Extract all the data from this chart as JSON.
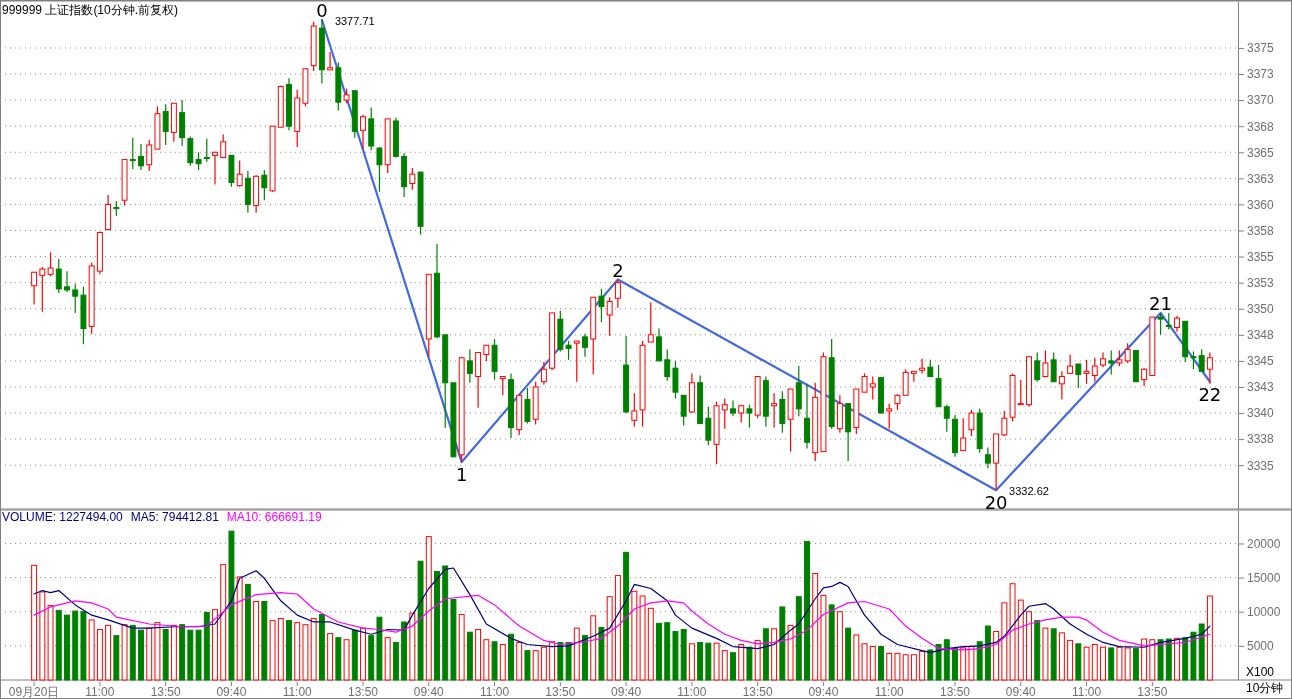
{
  "chart_data": [
    {
      "type": "candlestick",
      "title": "999999 上证指数(10分钟.前复权)",
      "categories": [
        null,
        null,
        null,
        null,
        null,
        null,
        null,
        null,
        null,
        null,
        null,
        null,
        null,
        null,
        null,
        null,
        null,
        null,
        null,
        null,
        null,
        null,
        null,
        null,
        null,
        null,
        null,
        null,
        null,
        null,
        null,
        null,
        null,
        null,
        null,
        null,
        null,
        null,
        null,
        null,
        null,
        null,
        null,
        null,
        null,
        null,
        null,
        null,
        null,
        null,
        null,
        null,
        null,
        null,
        null,
        null,
        null,
        null,
        null,
        null,
        null,
        null,
        null,
        null,
        null,
        null,
        null,
        null,
        null,
        null,
        null,
        null,
        null,
        null,
        null,
        null,
        null,
        null,
        null,
        null,
        null,
        null,
        null,
        null,
        null,
        null,
        null,
        null,
        null,
        null,
        null,
        null,
        null,
        null,
        null,
        null,
        null,
        null,
        null,
        null,
        null,
        null,
        null,
        null,
        null,
        null,
        null,
        null,
        null,
        null,
        null,
        null,
        null,
        null,
        null,
        null,
        null,
        null,
        null,
        null,
        null,
        null,
        null,
        null,
        null,
        null,
        null,
        null,
        null,
        null,
        null,
        null,
        null,
        null,
        null,
        null,
        null,
        null,
        null,
        null,
        null,
        null,
        null,
        null
      ],
      "ohlc": [
        [
          3352.2,
          3353.5,
          3350.4,
          3353.5
        ],
        [
          3353.2,
          3354.0,
          3349.7,
          3353.8
        ],
        [
          3353.3,
          3355.4,
          3353.1,
          3353.9
        ],
        [
          3353.8,
          3354.8,
          3351.5,
          3351.9
        ],
        [
          3352.1,
          3353.6,
          3351.6,
          3351.8
        ],
        [
          3351.8,
          3352.4,
          3349.6,
          3351.2
        ],
        [
          3351.3,
          3352.1,
          3346.6,
          3348.1
        ],
        [
          3348.3,
          3354.4,
          3347.6,
          3354.1
        ],
        [
          3353.6,
          3357.4,
          3353.3,
          3357.3
        ],
        [
          3357.6,
          3360.9,
          3357.5,
          3360.0
        ],
        [
          3359.7,
          3360.3,
          3358.9,
          3359.6
        ],
        [
          3360.4,
          3364.3,
          3359.9,
          3364.3
        ],
        [
          3364.3,
          3366.4,
          3363.4,
          3364.2
        ],
        [
          3364.6,
          3365.8,
          3363.3,
          3363.7
        ],
        [
          3363.8,
          3366.2,
          3363.2,
          3365.7
        ],
        [
          3365.3,
          3369.4,
          3365.3,
          3368.7
        ],
        [
          3368.9,
          3369.6,
          3365.7,
          3367.0
        ],
        [
          3366.9,
          3369.7,
          3366.0,
          3369.7
        ],
        [
          3368.8,
          3370.0,
          3365.6,
          3366.4
        ],
        [
          3366.3,
          3366.5,
          3363.7,
          3364.0
        ],
        [
          3364.3,
          3365.0,
          3363.3,
          3363.9
        ],
        [
          3364.5,
          3366.3,
          3364.1,
          3364.4
        ],
        [
          3364.7,
          3365.0,
          3361.9,
          3365.0
        ],
        [
          3364.5,
          3366.7,
          3364.5,
          3366.0
        ],
        [
          3364.7,
          3364.7,
          3361.7,
          3362.1
        ],
        [
          3361.8,
          3364.2,
          3361.7,
          3362.9
        ],
        [
          3362.5,
          3363.2,
          3359.2,
          3360.0
        ],
        [
          3359.9,
          3362.8,
          3359.2,
          3362.7
        ],
        [
          3362.8,
          3363.3,
          3360.4,
          3361.6
        ],
        [
          3361.3,
          3367.5,
          3361.2,
          3367.5
        ],
        [
          3367.4,
          3371.4,
          3367.4,
          3371.3
        ],
        [
          3371.5,
          3372.1,
          3367.1,
          3367.5
        ],
        [
          3367.0,
          3371.0,
          3365.5,
          3370.2
        ],
        [
          3369.7,
          3373.0,
          3369.4,
          3373.0
        ],
        [
          3373.3,
          3377.5,
          3372.8,
          3377.1
        ],
        [
          3376.9,
          3377.7,
          3371.6,
          3372.9
        ],
        [
          3372.9,
          3374.6,
          3372.9,
          3373.1
        ],
        [
          3373.1,
          3373.6,
          3369.0,
          3369.8
        ],
        [
          3370.0,
          3371.1,
          3369.7,
          3370.5
        ],
        [
          3370.9,
          3370.9,
          3366.4,
          3367.0
        ],
        [
          3367.1,
          3368.6,
          3365.3,
          3368.4
        ],
        [
          3368.2,
          3369.3,
          3365.2,
          3365.6
        ],
        [
          3365.4,
          3365.5,
          3361.2,
          3363.8
        ],
        [
          3363.8,
          3368.2,
          3363.0,
          3368.2
        ],
        [
          3368.0,
          3368.3,
          3364.5,
          3364.6
        ],
        [
          3364.6,
          3364.9,
          3360.7,
          3361.7
        ],
        [
          3362.0,
          3363.5,
          3361.4,
          3362.9
        ],
        [
          3363.1,
          3363.1,
          3357.1,
          3357.9
        ],
        [
          3347.1,
          3353.3,
          3345.4,
          3353.3
        ],
        [
          3353.4,
          3356.2,
          3347.2,
          3347.3
        ],
        [
          3347.5,
          3347.5,
          3338.6,
          3342.9
        ],
        [
          3342.9,
          3342.9,
          3335.8,
          3335.8
        ],
        [
          3336.0,
          3345.4,
          3335.3,
          3345.3
        ],
        [
          3345.0,
          3346.1,
          3342.9,
          3343.8
        ],
        [
          3343.5,
          3345.8,
          3340.5,
          3345.8
        ],
        [
          3345.6,
          3346.5,
          3345.0,
          3346.5
        ],
        [
          3346.5,
          3347.1,
          3343.2,
          3344.0
        ],
        [
          3343.3,
          3343.5,
          3341.7,
          3343.5
        ],
        [
          3343.2,
          3343.8,
          3337.6,
          3338.6
        ],
        [
          3338.4,
          3341.7,
          3337.9,
          3341.7
        ],
        [
          3341.3,
          3342.4,
          3339.0,
          3339.2
        ],
        [
          3339.4,
          3343.0,
          3338.9,
          3342.5
        ],
        [
          3343.0,
          3344.9,
          3342.7,
          3344.2
        ],
        [
          3344.3,
          3349.6,
          3344.1,
          3349.6
        ],
        [
          3349.0,
          3349.8,
          3345.9,
          3346.1
        ],
        [
          3346.5,
          3346.9,
          3345.1,
          3346.2
        ],
        [
          3346.7,
          3346.9,
          3343.0,
          3346.9
        ],
        [
          3347.3,
          3347.6,
          3345.4,
          3346.3
        ],
        [
          3347.1,
          3351.1,
          3343.7,
          3351.1
        ],
        [
          3351.2,
          3351.9,
          3348.7,
          3350.2
        ],
        [
          3349.4,
          3351.1,
          3347.4,
          3350.7
        ],
        [
          3351.0,
          3352.8,
          3350.1,
          3352.5
        ],
        [
          3344.6,
          3347.4,
          3340.0,
          3340.1
        ],
        [
          3339.3,
          3341.9,
          3338.7,
          3340.2
        ],
        [
          3340.3,
          3346.9,
          3338.7,
          3346.5
        ],
        [
          3346.8,
          3350.6,
          3346.8,
          3347.5
        ],
        [
          3347.3,
          3348.1,
          3345.0,
          3345.0
        ],
        [
          3345.1,
          3346.1,
          3343.1,
          3343.5
        ],
        [
          3344.3,
          3345.0,
          3341.4,
          3342.0
        ],
        [
          3341.7,
          3341.7,
          3338.8,
          3339.7
        ],
        [
          3340.1,
          3343.8,
          3340.0,
          3342.9
        ],
        [
          3342.9,
          3343.6,
          3339.0,
          3339.0
        ],
        [
          3339.5,
          3340.6,
          3336.9,
          3337.4
        ],
        [
          3337.0,
          3341.1,
          3335.1,
          3340.7
        ],
        [
          3340.3,
          3341.4,
          3338.5,
          3340.8
        ],
        [
          3340.4,
          3341.2,
          3339.7,
          3340.0
        ],
        [
          3340.0,
          3340.8,
          3339.1,
          3340.7
        ],
        [
          3340.4,
          3340.8,
          3338.6,
          3340.0
        ],
        [
          3339.8,
          3343.5,
          3339.5,
          3343.5
        ],
        [
          3343.1,
          3343.5,
          3338.7,
          3339.7
        ],
        [
          3340.7,
          3341.9,
          3338.6,
          3340.9
        ],
        [
          3341.3,
          3342.1,
          3338.1,
          3339.0
        ],
        [
          3339.4,
          3342.3,
          3336.3,
          3342.3
        ],
        [
          3342.9,
          3344.5,
          3339.7,
          3340.4
        ],
        [
          3339.5,
          3342.8,
          3336.6,
          3337.2
        ],
        [
          3336.2,
          3342.9,
          3335.4,
          3341.5
        ],
        [
          3336.3,
          3345.8,
          3336.3,
          3345.4
        ],
        [
          3345.3,
          3347.1,
          3338.5,
          3338.7
        ],
        [
          3338.5,
          3341.7,
          3338.1,
          3340.9
        ],
        [
          3340.9,
          3340.9,
          3335.4,
          3338.2
        ],
        [
          3338.6,
          3342.3,
          3338.0,
          3342.3
        ],
        [
          3342.0,
          3343.8,
          3342.0,
          3343.5
        ],
        [
          3342.5,
          3343.5,
          3341.3,
          3342.8
        ],
        [
          3343.4,
          3343.4,
          3340.0,
          3340.0
        ],
        [
          3340.2,
          3340.9,
          3338.5,
          3340.4
        ],
        [
          3340.9,
          3341.8,
          3340.3,
          3341.7
        ],
        [
          3341.7,
          3344.2,
          3341.7,
          3343.9
        ],
        [
          3343.8,
          3344.0,
          3343.0,
          3344.0
        ],
        [
          3344.1,
          3345.2,
          3343.8,
          3344.3
        ],
        [
          3344.4,
          3345.1,
          3343.5,
          3343.5
        ],
        [
          3343.3,
          3344.6,
          3340.6,
          3340.6
        ],
        [
          3340.6,
          3340.8,
          3338.2,
          3339.5
        ],
        [
          3339.4,
          3339.8,
          3335.8,
          3336.2
        ],
        [
          3336.4,
          3339.5,
          3336.4,
          3337.6
        ],
        [
          3338.4,
          3340.3,
          3337.8,
          3340.0
        ],
        [
          3340.0,
          3340.4,
          3336.2,
          3336.6
        ],
        [
          3336.0,
          3336.7,
          3334.7,
          3335.2
        ],
        [
          3335.2,
          3338.0,
          3332.6,
          3338.0
        ],
        [
          3337.9,
          3340.2,
          3337.8,
          3339.5
        ],
        [
          3339.6,
          3343.8,
          3339.2,
          3343.6
        ],
        [
          3340.8,
          3343.2,
          3340.8,
          3340.9
        ],
        [
          3340.8,
          3345.4,
          3340.6,
          3345.4
        ],
        [
          3345.0,
          3345.8,
          3343.0,
          3343.2
        ],
        [
          3343.5,
          3346.0,
          3343.4,
          3344.8
        ],
        [
          3345.1,
          3345.8,
          3343.0,
          3343.0
        ],
        [
          3342.8,
          3344.0,
          3341.3,
          3343.5
        ],
        [
          3343.8,
          3345.6,
          3343.8,
          3344.5
        ],
        [
          3344.7,
          3344.7,
          3342.4,
          3343.7
        ],
        [
          3343.8,
          3345.1,
          3342.8,
          3344.0
        ],
        [
          3343.6,
          3345.3,
          3343.0,
          3344.5
        ],
        [
          3344.6,
          3345.8,
          3344.4,
          3345.2
        ],
        [
          3345.0,
          3346.0,
          3343.7,
          3344.8
        ],
        [
          3344.8,
          3346.0,
          3344.5,
          3345.1
        ],
        [
          3345.0,
          3346.7,
          3344.8,
          3346.1
        ],
        [
          3346.0,
          3346.0,
          3343.0,
          3343.0
        ],
        [
          3343.2,
          3344.3,
          3342.6,
          3344.2
        ],
        [
          3343.6,
          3349.2,
          3343.6,
          3349.2
        ],
        [
          3349.2,
          3349.6,
          3347.5,
          3349.0
        ],
        [
          3348.4,
          3349.6,
          3348.0,
          3348.3
        ],
        [
          3348.2,
          3349.3,
          3347.8,
          3349.1
        ],
        [
          3348.8,
          3348.8,
          3344.9,
          3345.4
        ],
        [
          3345.4,
          3345.9,
          3344.2,
          3345.3
        ],
        [
          3345.5,
          3346.1,
          3344.0,
          3344.0
        ],
        [
          3344.2,
          3345.8,
          3342.8,
          3345.3
        ]
      ],
      "series": [
        {
          "type": "line",
          "color": "#4169e1",
          "values": [
            null,
            null,
            null,
            null,
            null,
            null,
            null,
            null,
            null,
            null,
            null,
            null,
            null,
            null,
            null,
            null,
            null,
            null,
            null,
            null,
            null,
            null,
            null,
            null,
            null,
            null,
            null,
            null,
            null,
            null,
            null,
            null,
            null,
            null,
            null,
            3377.7,
            null,
            null,
            null,
            null,
            null,
            null,
            null,
            null,
            null,
            null,
            null,
            null,
            null,
            null,
            null,
            null,
            3335.3,
            null,
            null,
            null,
            null,
            null,
            null,
            null,
            null,
            null,
            null,
            null,
            null,
            null,
            null,
            null,
            null,
            null,
            null,
            3352.8,
            null,
            null,
            null,
            null,
            null,
            null,
            null,
            null,
            null,
            null,
            null,
            null,
            null,
            null,
            null,
            null,
            null,
            null,
            null,
            null,
            null,
            null,
            null,
            null,
            null,
            null,
            null,
            null,
            null,
            null,
            null,
            null,
            null,
            null,
            null,
            null,
            null,
            null,
            null,
            null,
            null,
            null,
            null,
            null,
            null,
            3332.6,
            null,
            null,
            null,
            null,
            null,
            null,
            null,
            null,
            null,
            null,
            null,
            null,
            null,
            null,
            null,
            null,
            null,
            null,
            null,
            3349.6,
            null,
            null,
            null,
            null,
            null,
            3343.0
          ]
        }
      ],
      "annotations": [
        {
          "text": "0",
          "y": 3377.7
        },
        "3377.71",
        {
          "text": "1",
          "y": 3335.3
        },
        {
          "text": "2",
          "y": 3352.8
        },
        {
          "text": "20",
          "y": 3332.6
        },
        "3332.62",
        {
          "text": "21",
          "y": 3349.6
        },
        {
          "text": "22",
          "y": 3343.0
        }
      ],
      "ylim": [
        3330.8,
        3379.5
      ],
      "yticks": [
        3335,
        {
          "value": 3337.5,
          "label": "3338"
        },
        3340,
        {
          "value": 3342.5,
          "label": "3343"
        },
        3345,
        {
          "value": 3347.5,
          "label": "3348"
        },
        3350,
        {
          "value": 3352.5,
          "label": "3353"
        },
        3355,
        {
          "value": 3357.5,
          "label": "3358"
        },
        3360,
        {
          "value": 3362.5,
          "label": "3363"
        },
        3365,
        {
          "value": 3367.5,
          "label": "3368"
        },
        3370,
        {
          "value": 3372.5,
          "label": "3373"
        },
        3375
      ],
      "grid": "y"
    },
    {
      "type": "bar",
      "title": "VOLUME: 1227494.00",
      "categories": [
        "09月20日",
        null,
        null,
        null,
        null,
        null,
        null,
        null,
        "11:00",
        null,
        null,
        null,
        null,
        null,
        null,
        null,
        "13:50",
        null,
        null,
        null,
        null,
        null,
        null,
        null,
        "09:40",
        null,
        null,
        null,
        null,
        null,
        null,
        null,
        "11:00",
        null,
        null,
        null,
        null,
        null,
        null,
        null,
        "13:50",
        null,
        null,
        null,
        null,
        null,
        null,
        null,
        "09:40",
        null,
        null,
        null,
        null,
        null,
        null,
        null,
        "11:00",
        null,
        null,
        null,
        null,
        null,
        null,
        null,
        "13:50",
        null,
        null,
        null,
        null,
        null,
        null,
        null,
        "09:40",
        null,
        null,
        null,
        null,
        null,
        null,
        null,
        "11:00",
        null,
        null,
        null,
        null,
        null,
        null,
        null,
        "13:50",
        null,
        null,
        null,
        null,
        null,
        null,
        null,
        "09:40",
        null,
        null,
        null,
        null,
        null,
        null,
        null,
        "11:00",
        null,
        null,
        null,
        null,
        null,
        null,
        null,
        "13:50",
        null,
        null,
        null,
        null,
        null,
        null,
        null,
        "09:40",
        null,
        null,
        null,
        null,
        null,
        null,
        null,
        "11:00",
        null,
        null,
        null,
        null,
        null,
        null,
        null,
        "13:50",
        null,
        null,
        null,
        null,
        null,
        null,
        null
      ],
      "series": [
        {
          "type": "bar",
          "colors": [
            "#ff0000",
            "#ff0000",
            "#ff0000",
            "#008000",
            "#008000",
            "#008000",
            "#008000",
            "#ff0000",
            "#ff0000",
            "#ff0000",
            "#008000",
            "#ff0000",
            "#008000",
            "#008000",
            "#ff0000",
            "#ff0000",
            "#008000",
            "#ff0000",
            "#008000",
            "#008000",
            "#008000",
            "#008000",
            "#ff0000",
            "#ff0000",
            "#008000",
            "#ff0000",
            "#008000",
            "#ff0000",
            "#008000",
            "#ff0000",
            "#ff0000",
            "#008000",
            "#ff0000",
            "#ff0000",
            "#ff0000",
            "#008000",
            "#ff0000",
            "#008000",
            "#ff0000",
            "#008000",
            "#ff0000",
            "#008000",
            "#008000",
            "#ff0000",
            "#008000",
            "#008000",
            "#ff0000",
            "#008000",
            "#ff0000",
            "#008000",
            "#008000",
            "#008000",
            "#ff0000",
            "#008000",
            "#ff0000",
            "#ff0000",
            "#008000",
            "#ff0000",
            "#008000",
            "#ff0000",
            "#008000",
            "#ff0000",
            "#ff0000",
            "#ff0000",
            "#008000",
            "#008000",
            "#ff0000",
            "#008000",
            "#ff0000",
            "#008000",
            "#ff0000",
            "#ff0000",
            "#008000",
            "#ff0000",
            "#ff0000",
            "#ff0000",
            "#008000",
            "#008000",
            "#008000",
            "#008000",
            "#ff0000",
            "#008000",
            "#008000",
            "#ff0000",
            "#ff0000",
            "#008000",
            "#ff0000",
            "#008000",
            "#ff0000",
            "#008000",
            "#ff0000",
            "#008000",
            "#ff0000",
            "#008000",
            "#008000",
            "#ff0000",
            "#ff0000",
            "#008000",
            "#ff0000",
            "#008000",
            "#ff0000",
            "#ff0000",
            "#ff0000",
            "#008000",
            "#ff0000",
            "#ff0000",
            "#ff0000",
            "#ff0000",
            "#ff0000",
            "#008000",
            "#008000",
            "#008000",
            "#008000",
            "#ff0000",
            "#ff0000",
            "#008000",
            "#008000",
            "#ff0000",
            "#ff0000",
            "#ff0000",
            "#ff0000",
            "#ff0000",
            "#008000",
            "#ff0000",
            "#008000",
            "#ff0000",
            "#ff0000",
            "#008000",
            "#ff0000",
            "#ff0000",
            "#ff0000",
            "#008000",
            "#ff0000",
            "#ff0000",
            "#008000",
            "#ff0000",
            "#ff0000",
            "#008000",
            "#008000",
            "#ff0000",
            "#008000",
            "#008000",
            "#008000",
            "#ff0000"
          ],
          "values": [
            16800,
            12900,
            10900,
            10200,
            9500,
            10100,
            10000,
            8800,
            7400,
            8000,
            6500,
            8100,
            8000,
            7300,
            7600,
            8400,
            7400,
            8000,
            8100,
            7300,
            7300,
            9900,
            10300,
            16900,
            21800,
            15100,
            14000,
            11500,
            11500,
            8700,
            9000,
            8700,
            8400,
            8100,
            9000,
            9600,
            6800,
            6200,
            5900,
            7300,
            7600,
            6500,
            9200,
            6200,
            5500,
            8500,
            9800,
            17400,
            21000,
            15900,
            16700,
            11800,
            9600,
            7000,
            7400,
            5900,
            5600,
            5200,
            6700,
            5500,
            4300,
            4300,
            4800,
            5600,
            5500,
            5500,
            7600,
            6500,
            9400,
            7700,
            12200,
            15300,
            18700,
            13000,
            12300,
            10500,
            8300,
            8400,
            7100,
            7400,
            5300,
            5500,
            5400,
            5400,
            4300,
            4000,
            5200,
            4800,
            5800,
            7500,
            7500,
            10700,
            8000,
            12200,
            20300,
            15600,
            12400,
            11000,
            10000,
            7600,
            6600,
            5300,
            4900,
            4900,
            3900,
            3900,
            3700,
            3700,
            4200,
            4400,
            5200,
            5900,
            4600,
            4700,
            4900,
            5600,
            7900,
            7100,
            11300,
            14100,
            11700,
            10000,
            8700,
            7600,
            7500,
            6900,
            5800,
            5300,
            4800,
            5200,
            4800,
            4700,
            4800,
            4700,
            4600,
            6000,
            5900,
            5900,
            6000,
            6100,
            6200,
            7000,
            8200,
            12300
          ]
        },
        {
          "type": "line",
          "name": "MA5: 794412.81",
          "color": "#000080",
          "values": [
            12600,
            13100,
            12800,
            13100,
            null,
            11000,
            null,
            9500,
            null,
            8800,
            null,
            null,
            7600,
            null,
            7600,
            null,
            null,
            7800,
            null,
            null,
            7800,
            null,
            8200,
            null,
            11600,
            14900,
            null,
            16000,
            14900,
            null,
            11600,
            null,
            9500,
            null,
            8500,
            null,
            8500,
            null,
            null,
            7300,
            null,
            6700,
            null,
            7400,
            null,
            7300,
            9500,
            null,
            13400,
            null,
            16200,
            16400,
            null,
            12500,
            null,
            8200,
            null,
            null,
            6100,
            null,
            5200,
            null,
            null,
            4900,
            null,
            5000,
            null,
            null,
            6400,
            null,
            7600,
            null,
            11600,
            14000,
            null,
            13400,
            null,
            11600,
            9500,
            null,
            7600,
            null,
            null,
            6100,
            null,
            4900,
            null,
            null,
            4600,
            null,
            5200,
            null,
            7300,
            8200,
            null,
            11900,
            13500,
            13700,
            14300,
            13700,
            null,
            9500,
            null,
            6700,
            null,
            5200,
            null,
            null,
            4300,
            4000,
            null,
            4600,
            null,
            4900,
            null,
            5000,
            null,
            5500,
            6400,
            null,
            9500,
            10800,
            null,
            11200,
            10400,
            null,
            8200,
            null,
            6700,
            null,
            5500,
            null,
            4900,
            null,
            null,
            4800,
            null,
            5500,
            null,
            null,
            6100,
            null,
            6700,
            7900
          ]
        },
        {
          "type": "line",
          "name": "MA10: 666691.19",
          "color": "#ff00ff",
          "values": [
            9500,
            null,
            10700,
            null,
            null,
            11600,
            null,
            11300,
            null,
            10400,
            9200,
            null,
            null,
            null,
            8200,
            null,
            null,
            null,
            7800,
            null,
            null,
            7900,
            null,
            null,
            11000,
            null,
            null,
            12500,
            null,
            null,
            12800,
            null,
            12600,
            null,
            10400,
            null,
            null,
            8500,
            null,
            null,
            7600,
            null,
            7400,
            null,
            7000,
            null,
            7900,
            null,
            10100,
            null,
            11900,
            null,
            null,
            null,
            12400,
            null,
            11000,
            null,
            null,
            7900,
            null,
            null,
            5800,
            null,
            5200,
            null,
            null,
            5600,
            null,
            6100,
            null,
            7900,
            null,
            10400,
            null,
            11300,
            null,
            11600,
            null,
            11300,
            10100,
            null,
            8200,
            null,
            6700,
            null,
            5800,
            null,
            5300,
            null,
            5500,
            null,
            6000,
            null,
            7300,
            null,
            9600,
            null,
            null,
            11300,
            null,
            11500,
            null,
            null,
            10400,
            null,
            7900,
            null,
            6100,
            null,
            4600,
            null,
            null,
            4400,
            null,
            4600,
            null,
            5200,
            null,
            7300,
            null,
            8200,
            null,
            8800,
            null,
            9200,
            null,
            9200,
            8800,
            null,
            7000,
            null,
            5800,
            null,
            null,
            5000,
            null,
            5200,
            null,
            null,
            5500,
            null,
            null,
            6700
          ]
        }
      ],
      "annotations": [
        "X100",
        "10分钟"
      ],
      "ylim": [
        0,
        24900
      ],
      "yticks": [
        5000,
        10000,
        15000,
        20000
      ],
      "grid": "y",
      "legend": "top left"
    }
  ]
}
